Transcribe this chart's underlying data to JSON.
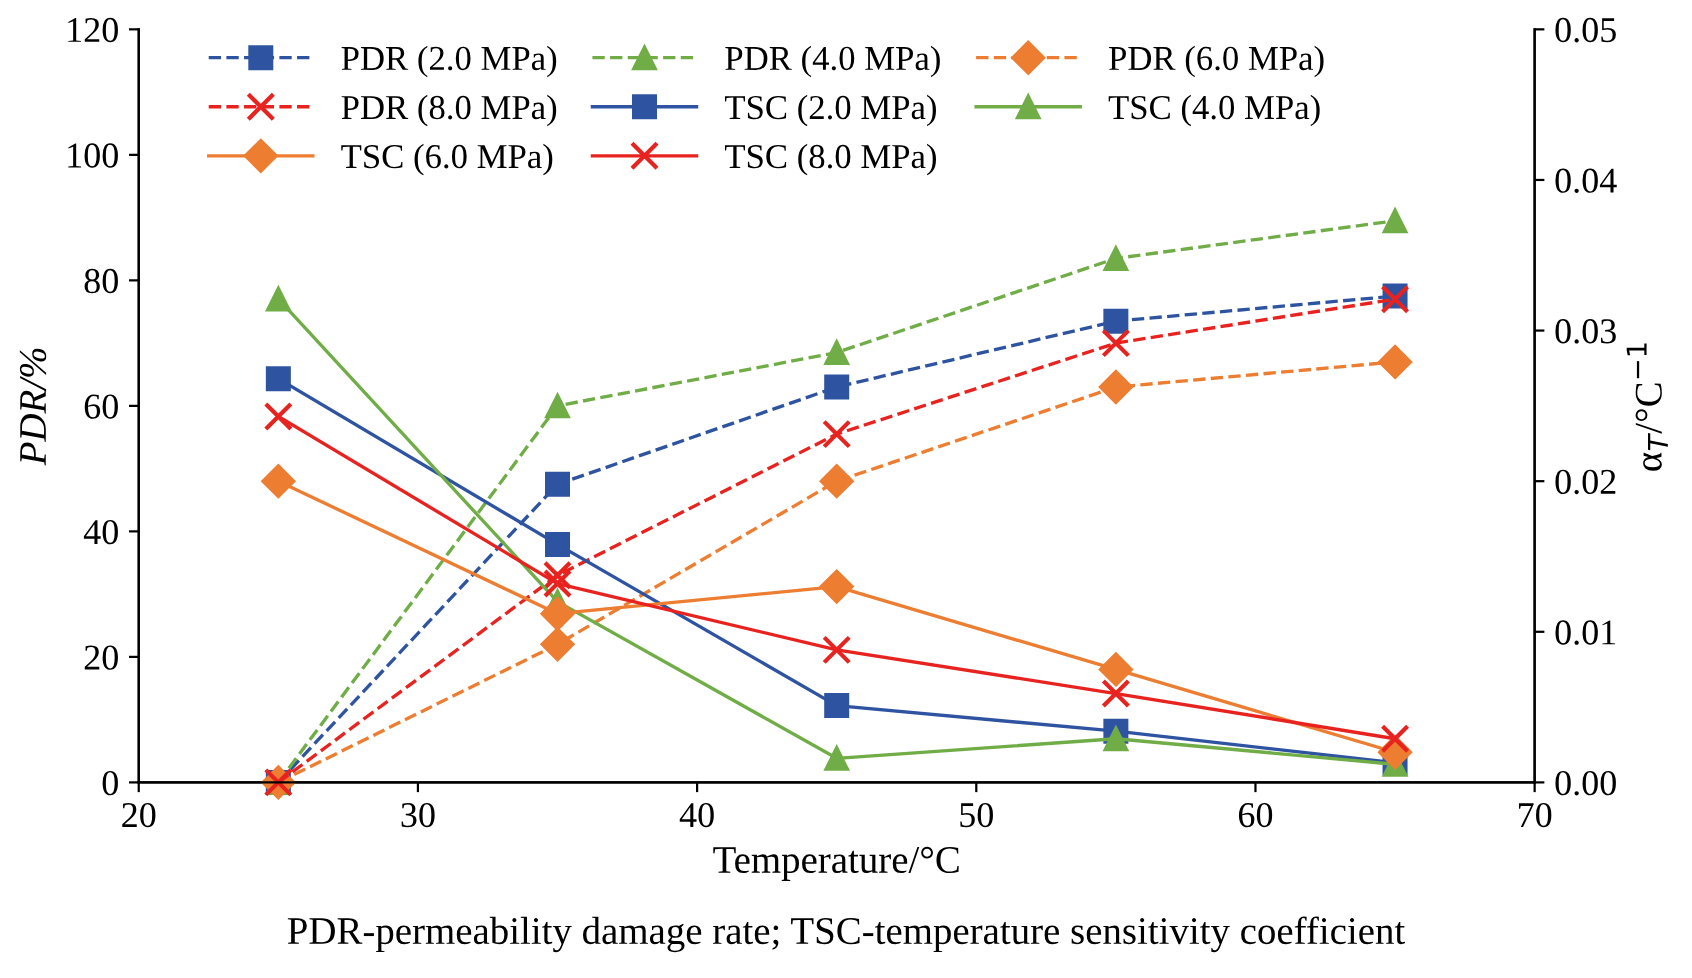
{
  "chart_data": {
    "type": "line",
    "xlabel": "Temperature/°C",
    "ylabel": "PDR/%",
    "y2label": "α$_{T}$/°C$^{−1}$",
    "x": [
      25,
      35,
      45,
      55,
      65
    ],
    "xlim": [
      20,
      70
    ],
    "xticks": [
      20,
      30,
      40,
      50,
      60,
      70
    ],
    "ylim": [
      0,
      120
    ],
    "yticks": [
      0,
      20,
      40,
      60,
      80,
      100,
      120
    ],
    "y2lim": [
      0,
      0.05
    ],
    "y2ticks": [
      {
        "value": 0,
        "label": "0.00"
      },
      0.01,
      0.02,
      0.03,
      0.04,
      0.05
    ],
    "grid": false,
    "legend": "top",
    "series": [
      {
        "name": "PDR (2.0 MPa)",
        "color": "#2e54a1",
        "marker": "square",
        "line_style": "dashed",
        "values": [
          0,
          47.5,
          63,
          73.5,
          77.5
        ]
      },
      {
        "name": "PDR (4.0 MPa)",
        "color": "#70ad47",
        "marker": "triangle",
        "line_style": "dashed",
        "values": [
          0,
          60,
          68.5,
          83.5,
          89.5
        ]
      },
      {
        "name": "PDR (6.0 MPa)",
        "color": "#ed7d31",
        "marker": "diamond",
        "line_style": "dashed",
        "values": [
          0,
          22,
          48,
          63,
          67
        ]
      },
      {
        "name": "PDR (8.0 MPa)",
        "color": "#e8231f",
        "marker": "cross",
        "line_style": "dashed",
        "values": [
          0,
          33,
          55.5,
          70,
          77
        ]
      },
      {
        "name": "TSC (2.0 MPa)",
        "color": "#2e54a1",
        "marker": "square",
        "line_style": "solid",
        "axis": "y2",
        "values": [
          0.0268,
          0.0158,
          0.0051,
          0.0034,
          0.0013
        ]
      },
      {
        "name": "TSC (4.0 MPa)",
        "color": "#70ad47",
        "marker": "triangle",
        "line_style": "solid",
        "axis": "y2",
        "values": [
          0.0321,
          0.012,
          0.0016,
          0.0029,
          0.0012
        ]
      },
      {
        "name": "TSC (6.0 MPa)",
        "color": "#ed7d31",
        "marker": "diamond",
        "line_style": "solid",
        "axis": "y2",
        "values": [
          0.02,
          0.0112,
          0.013,
          0.0075,
          0.002
        ]
      },
      {
        "name": "TSC (8.0 MPa)",
        "color": "#e8231f",
        "marker": "cross",
        "line_style": "solid",
        "axis": "y2",
        "values": [
          0.0243,
          0.0132,
          0.0088,
          0.0059,
          0.0029
        ]
      }
    ],
    "annotations": [
      "PDR-permeability damage rate; TSC-temperature sensitivity coefficient"
    ]
  }
}
